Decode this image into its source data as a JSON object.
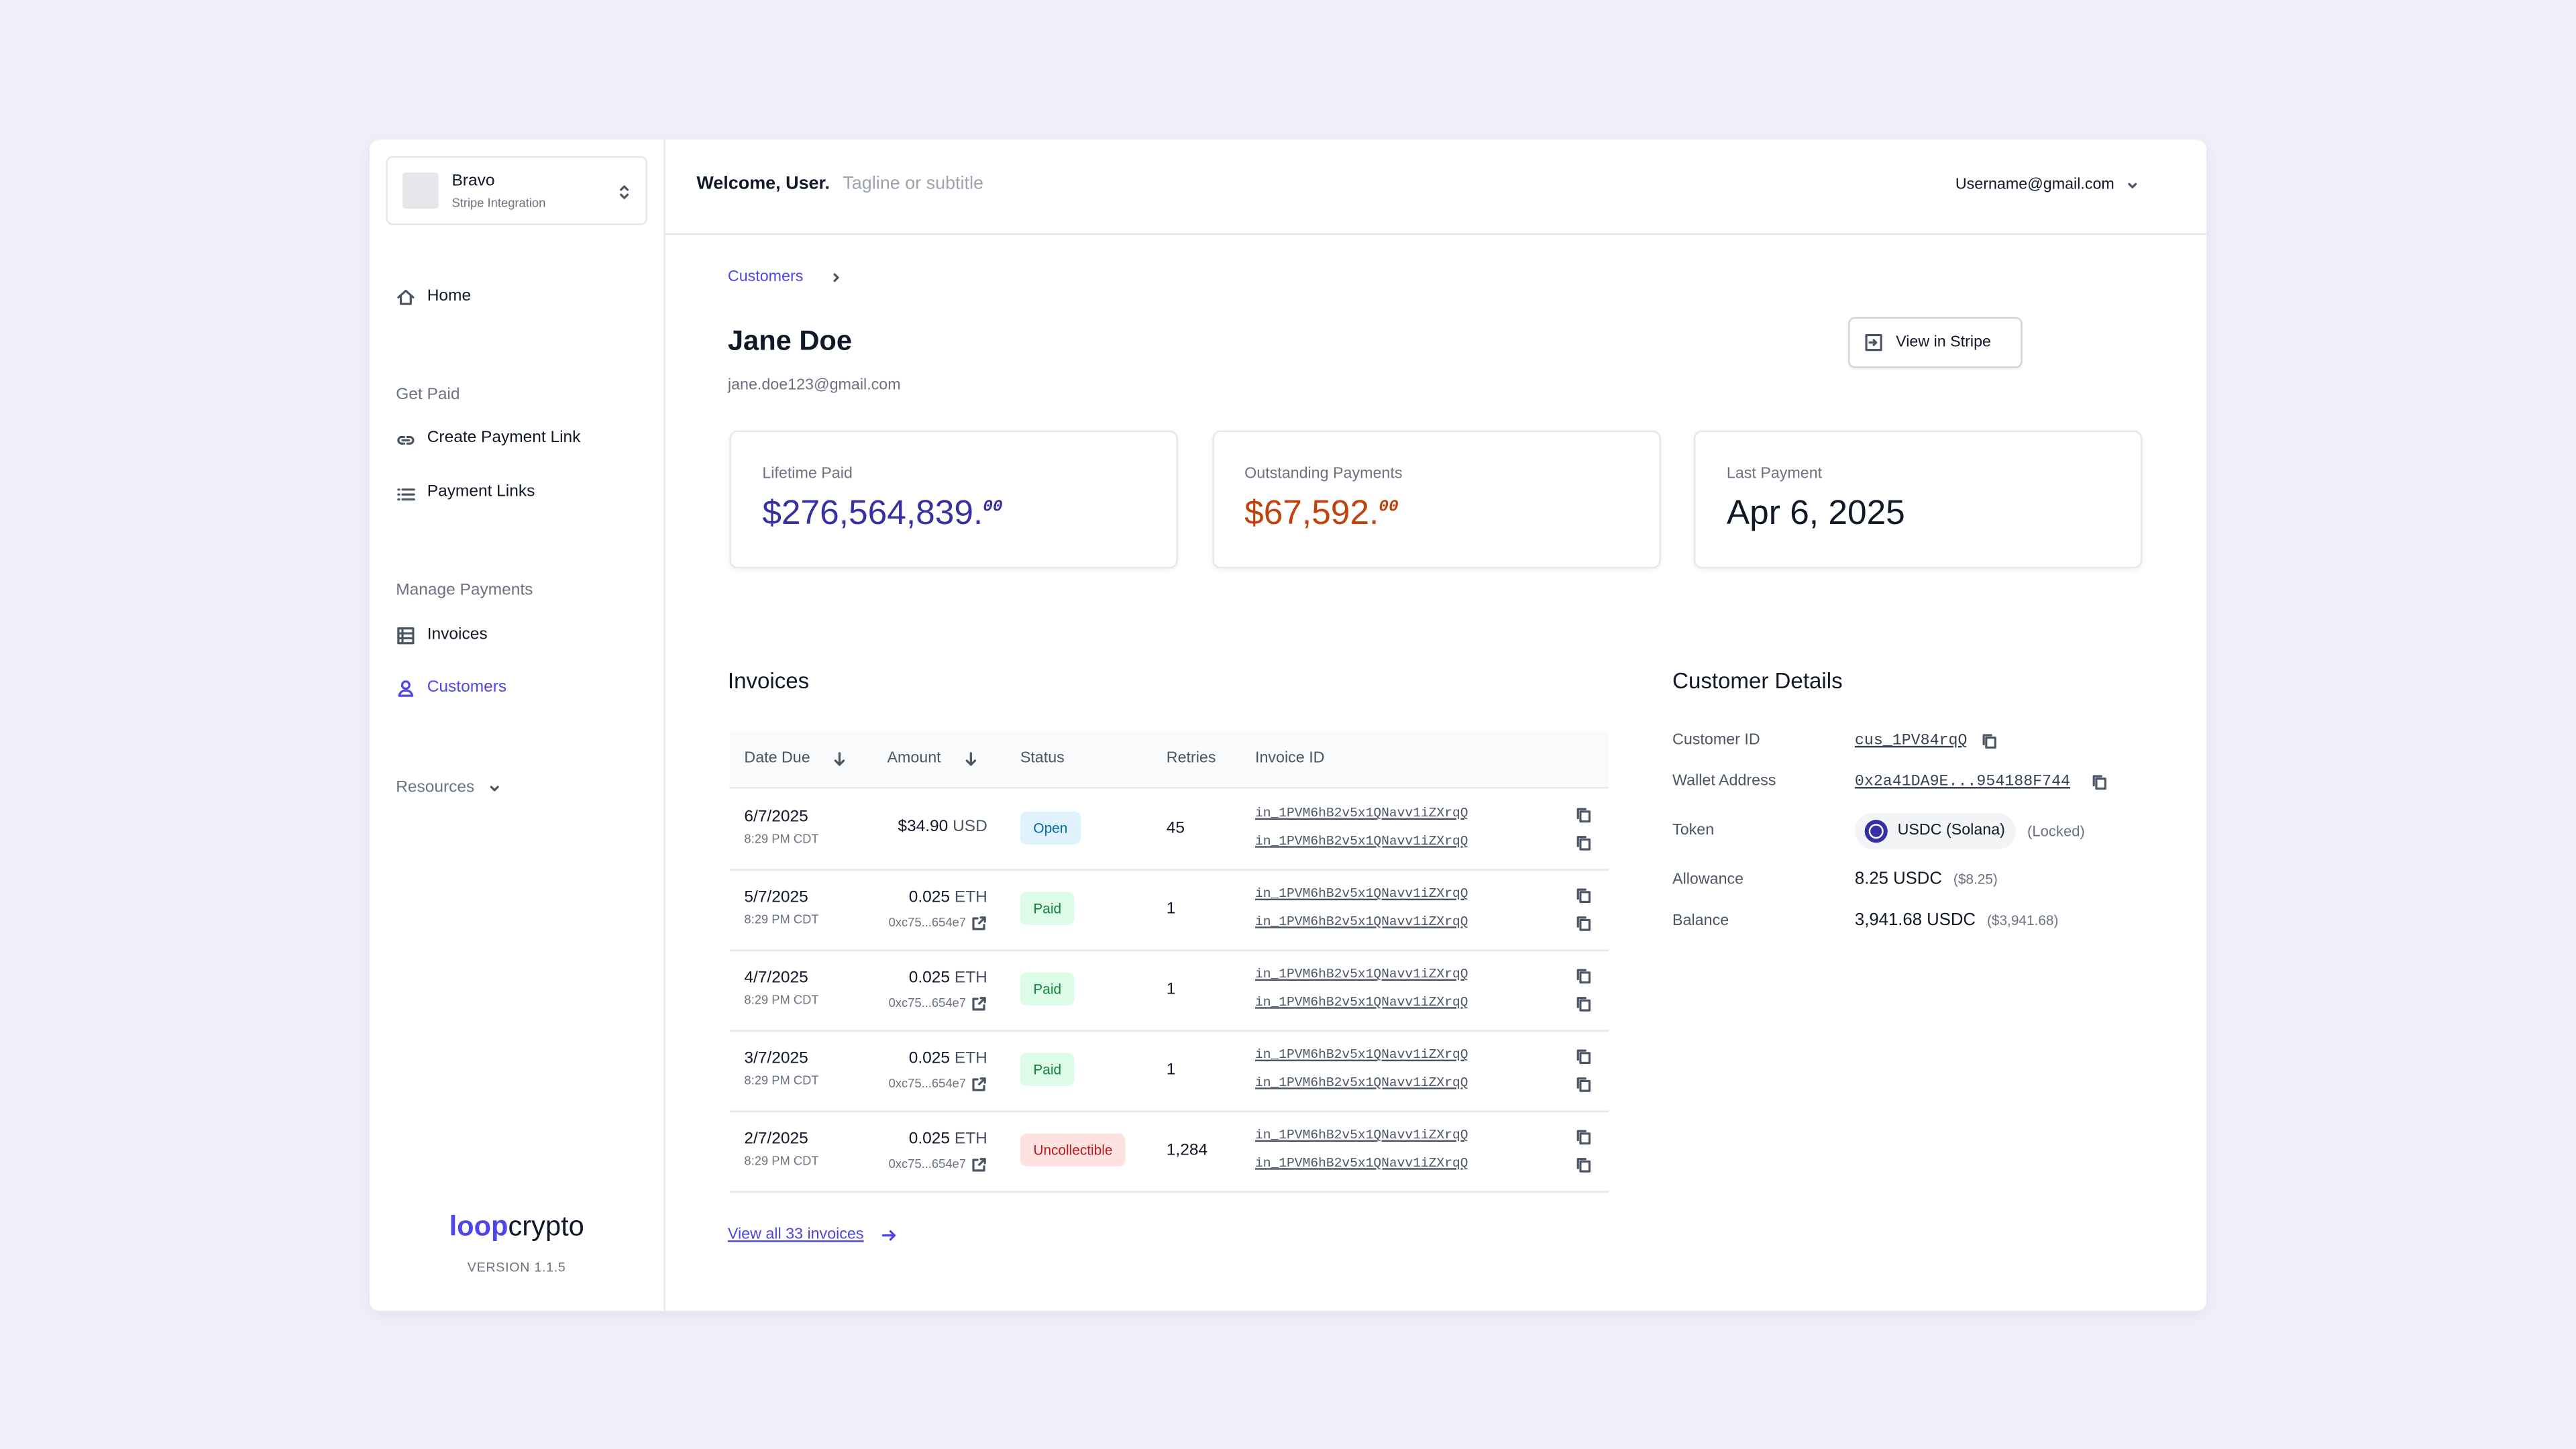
{
  "sidebar": {
    "workspace": {
      "name": "Bravo",
      "subtitle": "Stripe Integration"
    },
    "home": "Home",
    "sections": [
      {
        "title": "Get Paid",
        "items": [
          "Create Payment Link",
          "Payment Links"
        ]
      },
      {
        "title": "Manage Payments",
        "items": [
          "Invoices",
          "Customers"
        ]
      }
    ],
    "resources": "Resources",
    "logo": {
      "bold": "loop",
      "rest": "crypto"
    },
    "version": "VERSION 1.1.5"
  },
  "header": {
    "welcome": "Welcome, User.",
    "tagline": "Tagline or subtitle",
    "user": "Username@gmail.com"
  },
  "breadcrumb": "Customers",
  "customer": {
    "name": "Jane Doe",
    "email": "jane.doe123@gmail.com",
    "button": "View in Stripe"
  },
  "stats": [
    {
      "label": "Lifetime Paid",
      "value": "$276,564,839.",
      "cents": "00",
      "color": "#3730a3"
    },
    {
      "label": "Outstanding Payments",
      "value": "$67,592.",
      "cents": "00",
      "color": "#c2410c"
    },
    {
      "label": "Last Payment",
      "value": "Apr 6, 2025",
      "color": "#111827"
    }
  ],
  "invoices": {
    "title": "Invoices",
    "columns": [
      "Date Due",
      "Amount",
      "Status",
      "Retries",
      "Invoice ID"
    ],
    "rows": [
      {
        "date": "6/7/2025",
        "time": "8:29 PM CDT",
        "amount": "$34.90",
        "currency": "USD",
        "status": {
          "label": "Open",
          "bg": "#e0f2fe",
          "fg": "#0369a1"
        },
        "retries": 45,
        "ids": [
          "in_1PVM6hB2v5x1QNavv1iZXrqQ",
          "in_1PVM6hB2v5x1QNavv1iZXrqQ"
        ]
      },
      {
        "date": "5/7/2025",
        "time": "8:29 PM CDT",
        "amount": "0.025",
        "currency": "ETH",
        "tx": "0xc75...654e7",
        "status": {
          "label": "Paid",
          "bg": "#dcfce7",
          "fg": "#15803d"
        },
        "retries": 1,
        "ids": [
          "in_1PVM6hB2v5x1QNavv1iZXrqQ",
          "in_1PVM6hB2v5x1QNavv1iZXrqQ"
        ]
      },
      {
        "date": "4/7/2025",
        "time": "8:29 PM CDT",
        "amount": "0.025",
        "currency": "ETH",
        "tx": "0xc75...654e7",
        "status": {
          "label": "Paid",
          "bg": "#dcfce7",
          "fg": "#15803d"
        },
        "retries": 1,
        "ids": [
          "in_1PVM6hB2v5x1QNavv1iZXrqQ",
          "in_1PVM6hB2v5x1QNavv1iZXrqQ"
        ]
      },
      {
        "date": "3/7/2025",
        "time": "8:29 PM CDT",
        "amount": "0.025",
        "currency": "ETH",
        "tx": "0xc75...654e7",
        "status": {
          "label": "Paid",
          "bg": "#dcfce7",
          "fg": "#15803d"
        },
        "retries": 1,
        "ids": [
          "in_1PVM6hB2v5x1QNavv1iZXrqQ",
          "in_1PVM6hB2v5x1QNavv1iZXrqQ"
        ]
      },
      {
        "date": "2/7/2025",
        "time": "8:29 PM CDT",
        "amount": "0.025",
        "currency": "ETH",
        "tx": "0xc75...654e7",
        "status": {
          "label": "Uncollectible",
          "bg": "#fee2e2",
          "fg": "#b91c1c"
        },
        "retries": "1,284",
        "ids": [
          "in_1PVM6hB2v5x1QNavv1iZXrqQ",
          "in_1PVM6hB2v5x1QNavv1iZXrqQ"
        ]
      }
    ],
    "view_all": "View all 33 invoices"
  },
  "details": {
    "title": "Customer Details",
    "customer_id": {
      "label": "Customer ID",
      "value": "cus_1PV84rqQ"
    },
    "wallet": {
      "label": "Wallet Address",
      "value": "0x2a41DA9E...954188F744"
    },
    "token": {
      "label": "Token",
      "value": "USDC (Solana)",
      "note": "(Locked)"
    },
    "allowance": {
      "label": "Allowance",
      "value": "8.25 USDC",
      "note": "($8.25)"
    },
    "balance": {
      "label": "Balance",
      "value": "3,941.68 USDC",
      "note": "($3,941.68)"
    }
  }
}
